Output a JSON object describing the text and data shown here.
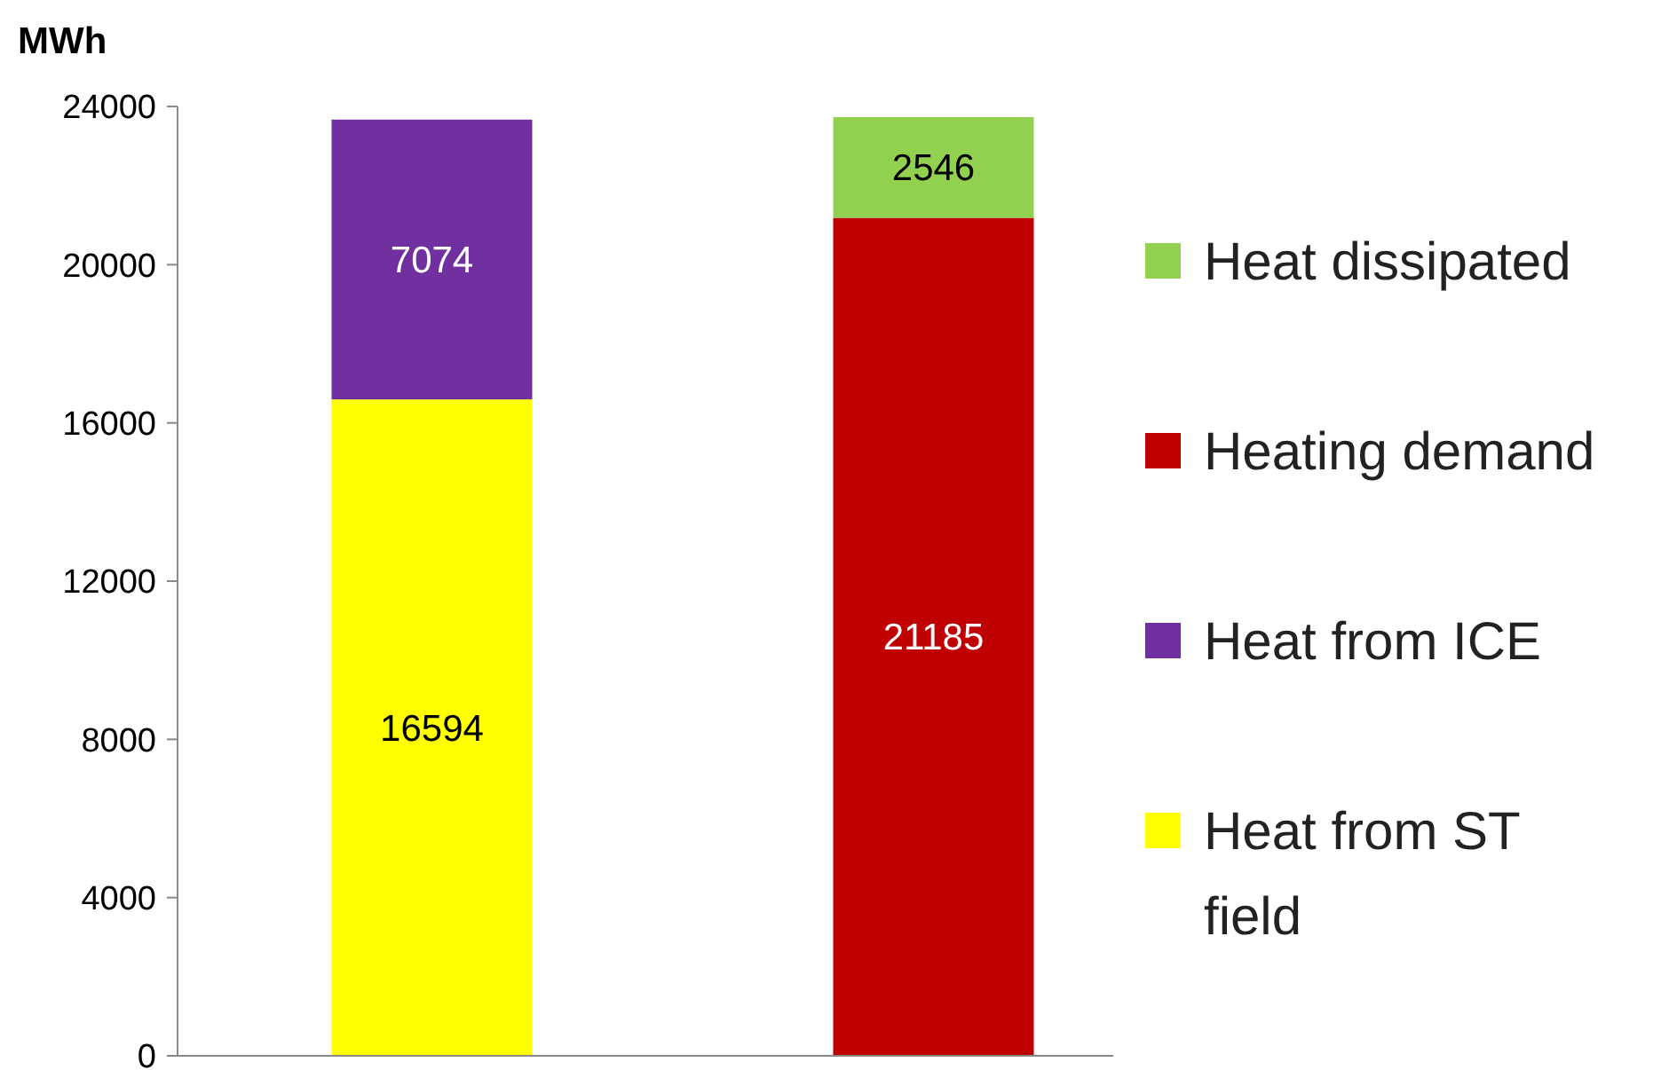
{
  "chart_data": {
    "type": "bar",
    "ylabel": "MWh",
    "categories": [
      null,
      null
    ],
    "stacked": true,
    "data_labels": true,
    "legend": "right",
    "ylim": [
      0,
      24000
    ],
    "yticks": [
      0,
      4000,
      8000,
      12000,
      16000,
      20000,
      24000
    ],
    "series": [
      {
        "name": "Heat from ST field",
        "color": "#ffff00",
        "values": [
          16594,
          null
        ]
      },
      {
        "name": "Heat from ICE",
        "color": "#7030a0",
        "values": [
          7074,
          null
        ]
      },
      {
        "name": "Heating demand",
        "color": "#c00000",
        "values": [
          null,
          21185
        ]
      },
      {
        "name": "Heat dissipated",
        "color": "#92d050",
        "values": [
          null,
          2546
        ]
      }
    ]
  }
}
